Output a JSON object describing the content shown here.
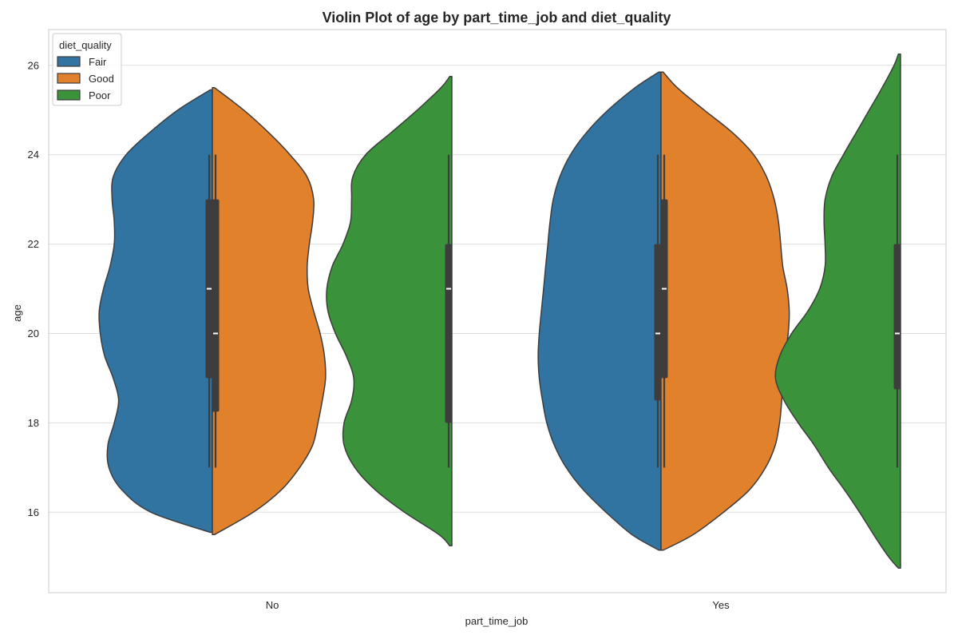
{
  "chart_data": {
    "type": "violin",
    "title": "Violin Plot of age by part_time_job and diet_quality",
    "xlabel": "part_time_job",
    "ylabel": "age",
    "categories": [
      "No",
      "Yes"
    ],
    "ylim": [
      14.2,
      26.8
    ],
    "yticks": [
      16,
      18,
      20,
      22,
      24,
      26
    ],
    "grid": true,
    "legend": {
      "title": "diet_quality",
      "placement": "top-left"
    },
    "series": [
      {
        "name": "Fair",
        "color": "#3274a1",
        "violins": [
          {
            "category": "No",
            "side": "left",
            "min": 15.55,
            "max": 25.45,
            "profile": [
              [
                15.55,
                0.02
              ],
              [
                16.0,
                0.57
              ],
              [
                16.5,
                0.84
              ],
              [
                17.0,
                0.96
              ],
              [
                17.5,
                0.97
              ],
              [
                18.0,
                0.91
              ],
              [
                18.5,
                0.87
              ],
              [
                19.0,
                0.92
              ],
              [
                19.5,
                1.0
              ],
              [
                20.0,
                1.04
              ],
              [
                20.5,
                1.05
              ],
              [
                21.0,
                1.01
              ],
              [
                21.5,
                0.95
              ],
              [
                22.0,
                0.91
              ],
              [
                22.5,
                0.91
              ],
              [
                23.0,
                0.93
              ],
              [
                23.5,
                0.92
              ],
              [
                24.0,
                0.8
              ],
              [
                24.5,
                0.58
              ],
              [
                25.0,
                0.32
              ],
              [
                25.45,
                0.02
              ]
            ],
            "box": {
              "whisker_low": 17,
              "q1": 19,
              "median": 21,
              "q3": 23,
              "whisker_high": 24
            }
          },
          {
            "category": "Yes",
            "side": "left",
            "min": 15.15,
            "max": 25.85,
            "profile": [
              [
                15.15,
                0.02
              ],
              [
                15.5,
                0.27
              ],
              [
                16.0,
                0.51
              ],
              [
                16.5,
                0.72
              ],
              [
                17.0,
                0.88
              ],
              [
                17.5,
                0.99
              ],
              [
                18.0,
                1.06
              ],
              [
                18.5,
                1.1
              ],
              [
                19.0,
                1.13
              ],
              [
                19.5,
                1.14
              ],
              [
                20.0,
                1.13
              ],
              [
                20.5,
                1.11
              ],
              [
                21.0,
                1.09
              ],
              [
                21.5,
                1.07
              ],
              [
                22.0,
                1.05
              ],
              [
                22.5,
                1.03
              ],
              [
                23.0,
                1.0
              ],
              [
                23.5,
                0.94
              ],
              [
                24.0,
                0.84
              ],
              [
                24.5,
                0.69
              ],
              [
                25.0,
                0.49
              ],
              [
                25.5,
                0.24
              ],
              [
                25.85,
                0.02
              ]
            ],
            "box": {
              "whisker_low": 17,
              "q1": 18.5,
              "median": 20,
              "q3": 22,
              "whisker_high": 24
            }
          }
        ]
      },
      {
        "name": "Good",
        "color": "#e1812c",
        "violins": [
          {
            "category": "No",
            "side": "right",
            "min": 15.5,
            "max": 25.5,
            "profile": [
              [
                15.5,
                0.02
              ],
              [
                16.0,
                0.38
              ],
              [
                16.5,
                0.64
              ],
              [
                17.0,
                0.81
              ],
              [
                17.5,
                0.93
              ],
              [
                18.0,
                0.98
              ],
              [
                18.5,
                1.02
              ],
              [
                19.0,
                1.05
              ],
              [
                19.5,
                1.04
              ],
              [
                20.0,
                1.0
              ],
              [
                20.5,
                0.94
              ],
              [
                21.0,
                0.89
              ],
              [
                21.5,
                0.88
              ],
              [
                22.0,
                0.9
              ],
              [
                22.5,
                0.93
              ],
              [
                23.0,
                0.94
              ],
              [
                23.5,
                0.88
              ],
              [
                24.0,
                0.72
              ],
              [
                24.5,
                0.52
              ],
              [
                25.0,
                0.29
              ],
              [
                25.5,
                0.02
              ]
            ],
            "box": {
              "whisker_low": 17,
              "q1": 18.25,
              "median": 20,
              "q3": 23,
              "whisker_high": 24
            }
          },
          {
            "category": "Yes",
            "side": "right",
            "min": 15.15,
            "max": 25.85,
            "profile": [
              [
                15.15,
                0.02
              ],
              [
                15.5,
                0.3
              ],
              [
                16.0,
                0.58
              ],
              [
                16.5,
                0.82
              ],
              [
                17.0,
                0.97
              ],
              [
                17.5,
                1.06
              ],
              [
                18.0,
                1.1
              ],
              [
                18.5,
                1.12
              ],
              [
                19.0,
                1.13
              ],
              [
                19.5,
                1.15
              ],
              [
                20.0,
                1.18
              ],
              [
                20.5,
                1.19
              ],
              [
                21.0,
                1.17
              ],
              [
                21.5,
                1.13
              ],
              [
                22.0,
                1.11
              ],
              [
                22.5,
                1.09
              ],
              [
                23.0,
                1.05
              ],
              [
                23.5,
                0.98
              ],
              [
                24.0,
                0.86
              ],
              [
                24.5,
                0.66
              ],
              [
                25.0,
                0.4
              ],
              [
                25.5,
                0.15
              ],
              [
                25.85,
                0.02
              ]
            ],
            "box": {
              "whisker_low": 17,
              "q1": 19,
              "median": 21,
              "q3": 23,
              "whisker_high": 24
            }
          }
        ]
      },
      {
        "name": "Poor",
        "color": "#3a923a",
        "violins": [
          {
            "category": "No",
            "side": "left",
            "min": 15.25,
            "max": 25.75,
            "profile": [
              [
                15.25,
                0.02
              ],
              [
                15.5,
                0.12
              ],
              [
                16.0,
                0.44
              ],
              [
                16.5,
                0.71
              ],
              [
                17.0,
                0.9
              ],
              [
                17.5,
                1.0
              ],
              [
                18.0,
                1.0
              ],
              [
                18.5,
                0.93
              ],
              [
                19.0,
                0.91
              ],
              [
                19.5,
                0.98
              ],
              [
                20.0,
                1.08
              ],
              [
                20.5,
                1.15
              ],
              [
                21.0,
                1.16
              ],
              [
                21.5,
                1.11
              ],
              [
                22.0,
                1.01
              ],
              [
                22.5,
                0.94
              ],
              [
                23.0,
                0.93
              ],
              [
                23.5,
                0.92
              ],
              [
                24.0,
                0.8
              ],
              [
                24.5,
                0.56
              ],
              [
                25.0,
                0.32
              ],
              [
                25.5,
                0.1
              ],
              [
                25.75,
                0.02
              ]
            ],
            "box": {
              "whisker_low": 17,
              "q1": 18,
              "median": 21,
              "q3": 22,
              "whisker_high": 24
            }
          },
          {
            "category": "Yes",
            "side": "left",
            "min": 14.75,
            "max": 26.25,
            "profile": [
              [
                14.75,
                0.02
              ],
              [
                15.0,
                0.11
              ],
              [
                15.5,
                0.25
              ],
              [
                16.0,
                0.38
              ],
              [
                16.5,
                0.52
              ],
              [
                17.0,
                0.67
              ],
              [
                17.5,
                0.8
              ],
              [
                18.0,
                0.95
              ],
              [
                18.5,
                1.08
              ],
              [
                19.0,
                1.16
              ],
              [
                19.5,
                1.12
              ],
              [
                20.0,
                1.01
              ],
              [
                20.5,
                0.86
              ],
              [
                21.0,
                0.75
              ],
              [
                21.5,
                0.7
              ],
              [
                22.0,
                0.7
              ],
              [
                22.5,
                0.71
              ],
              [
                23.0,
                0.7
              ],
              [
                23.5,
                0.64
              ],
              [
                24.0,
                0.53
              ],
              [
                24.5,
                0.41
              ],
              [
                25.0,
                0.29
              ],
              [
                25.5,
                0.17
              ],
              [
                26.0,
                0.06
              ],
              [
                26.25,
                0.02
              ]
            ],
            "box": {
              "whisker_low": 17,
              "q1": 18.75,
              "median": 20,
              "q3": 22,
              "whisker_high": 24
            }
          }
        ]
      }
    ]
  }
}
